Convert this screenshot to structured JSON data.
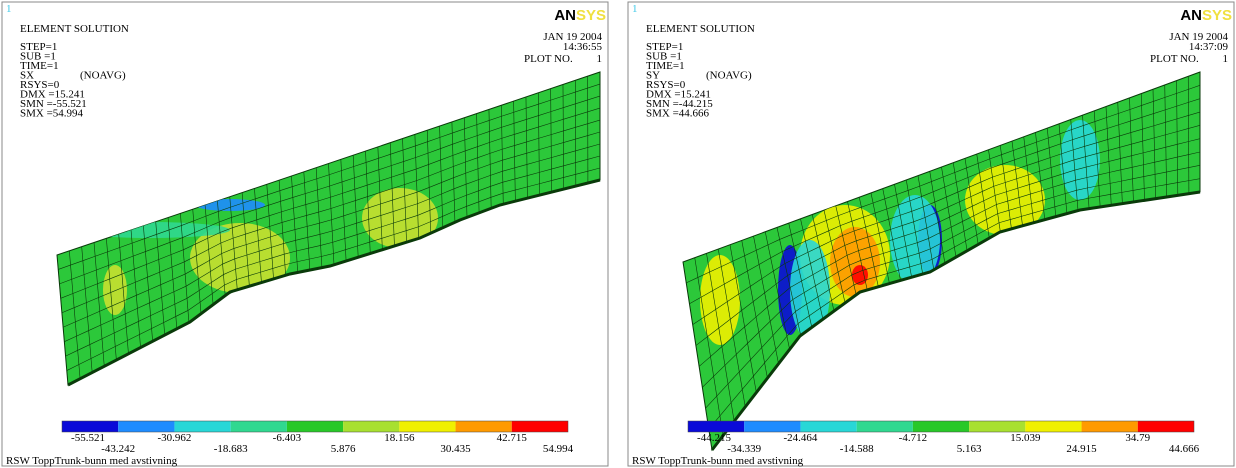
{
  "panels": [
    {
      "index": "1",
      "title": "ELEMENT SOLUTION",
      "lines": [
        "STEP=1",
        "SUB =1",
        "TIME=1"
      ],
      "component": "SX",
      "averaging": "(NOAVG)",
      "lines2": [
        "RSYS=0",
        "DMX =15.241",
        "SMN =-55.521",
        "SMX =54.994"
      ],
      "date": "JAN 19 2004",
      "time": "14:36:55",
      "plot": "PLOT NO.",
      "plot_no": "1",
      "logo_a": "AN",
      "logo_b": "SYS",
      "legend": [
        -55.521,
        -43.242,
        -30.962,
        -18.683,
        -6.403,
        5.876,
        18.156,
        30.435,
        42.715,
        54.994
      ],
      "footer": "RSW ToppTrunk-bunn med avstivning"
    },
    {
      "index": "1",
      "title": "ELEMENT SOLUTION",
      "lines": [
        "STEP=1",
        "SUB =1",
        "TIME=1"
      ],
      "component": "SY",
      "averaging": "(NOAVG)",
      "lines2": [
        "RSYS=0",
        "DMX =15.241",
        "SMN =-44.215",
        "SMX =44.666"
      ],
      "date": "JAN 19 2004",
      "time": "14:37:09",
      "plot": "PLOT NO.",
      "plot_no": "1",
      "logo_a": "AN",
      "logo_b": "SYS",
      "legend": [
        -44.215,
        -34.339,
        -24.464,
        -14.588,
        -4.712,
        5.163,
        15.039,
        24.915,
        34.79,
        44.666
      ],
      "footer": "RSW ToppTrunk-bunn med avstivning"
    }
  ]
}
